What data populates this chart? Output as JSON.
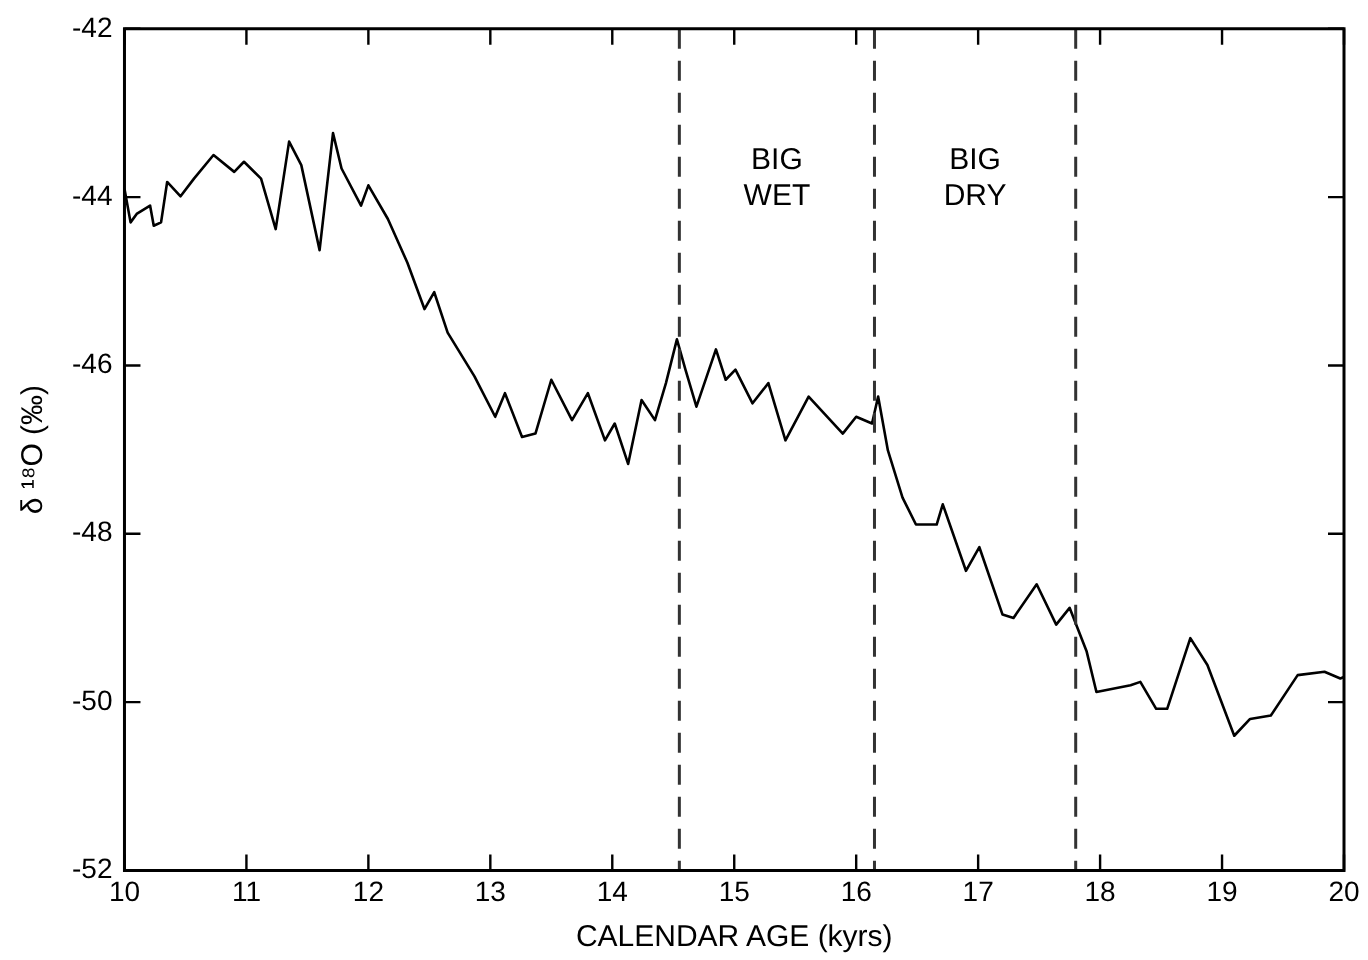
{
  "chart_data": {
    "type": "line",
    "xlabel": "CALENDAR AGE (kyrs)",
    "ylabel": "δ ¹⁸O (‰)",
    "xlim": [
      10,
      20
    ],
    "xticks": [
      10,
      11,
      12,
      13,
      14,
      15,
      16,
      17,
      18,
      19,
      20
    ],
    "ylim": [
      -52,
      -42
    ],
    "yticks": [
      -52,
      -50,
      -48,
      -46,
      -44,
      -42
    ],
    "grid": false,
    "legend": false,
    "marker": "none",
    "line_style": "solid",
    "series": [
      {
        "color": "#000000",
        "x": [
          10.0,
          10.05,
          10.1,
          10.21,
          10.24,
          10.3,
          10.35,
          10.46,
          10.57,
          10.73,
          10.9,
          10.98,
          11.12,
          11.24,
          11.35,
          11.45,
          11.6,
          11.71,
          11.78,
          11.94,
          12.0,
          12.16,
          12.32,
          12.46,
          12.54,
          12.65,
          12.87,
          13.04,
          13.12,
          13.26,
          13.37,
          13.5,
          13.67,
          13.8,
          13.94,
          14.02,
          14.13,
          14.24,
          14.35,
          14.44,
          14.53,
          14.6,
          14.69,
          14.85,
          14.93,
          15.01,
          15.15,
          15.28,
          15.42,
          15.61,
          15.89,
          16.0,
          16.13,
          16.18,
          16.26,
          16.38,
          16.49,
          16.66,
          16.71,
          16.9,
          17.01,
          17.2,
          17.29,
          17.48,
          17.64,
          17.75,
          17.89,
          17.97,
          18.25,
          18.33,
          18.46,
          18.55,
          18.74,
          18.88,
          19.1,
          19.23,
          19.4,
          19.62,
          19.84,
          19.97,
          20.0
        ],
        "values": [
          -43.9,
          -44.3,
          -44.2,
          -44.1,
          -44.34,
          -44.3,
          -43.82,
          -43.99,
          -43.78,
          -43.5,
          -43.7,
          -43.58,
          -43.78,
          -44.38,
          -43.34,
          -43.62,
          -44.63,
          -43.24,
          -43.66,
          -44.1,
          -43.86,
          -44.26,
          -44.78,
          -45.33,
          -45.13,
          -45.61,
          -46.13,
          -46.61,
          -46.33,
          -46.85,
          -46.81,
          -46.17,
          -46.65,
          -46.33,
          -46.89,
          -46.69,
          -47.17,
          -46.41,
          -46.65,
          -46.21,
          -45.69,
          -46.05,
          -46.49,
          -45.81,
          -46.17,
          -46.05,
          -46.45,
          -46.21,
          -46.89,
          -46.37,
          -46.81,
          -46.61,
          -46.69,
          -46.37,
          -47.01,
          -47.57,
          -47.89,
          -47.89,
          -47.65,
          -48.44,
          -48.16,
          -48.96,
          -49.0,
          -48.6,
          -49.08,
          -48.88,
          -49.4,
          -49.88,
          -49.8,
          -49.76,
          -50.08,
          -50.08,
          -49.24,
          -49.56,
          -50.4,
          -50.2,
          -50.16,
          -49.68,
          -49.64,
          -49.72,
          -49.7
        ]
      }
    ],
    "ref_lines": [
      {
        "axis": "x",
        "value": 14.55,
        "line_style": "dashed"
      },
      {
        "axis": "x",
        "value": 16.15,
        "line_style": "dashed"
      },
      {
        "axis": "x",
        "value": 17.8,
        "line_style": "dashed"
      }
    ],
    "annotations": [
      "BIG WET",
      "BIG DRY"
    ]
  }
}
